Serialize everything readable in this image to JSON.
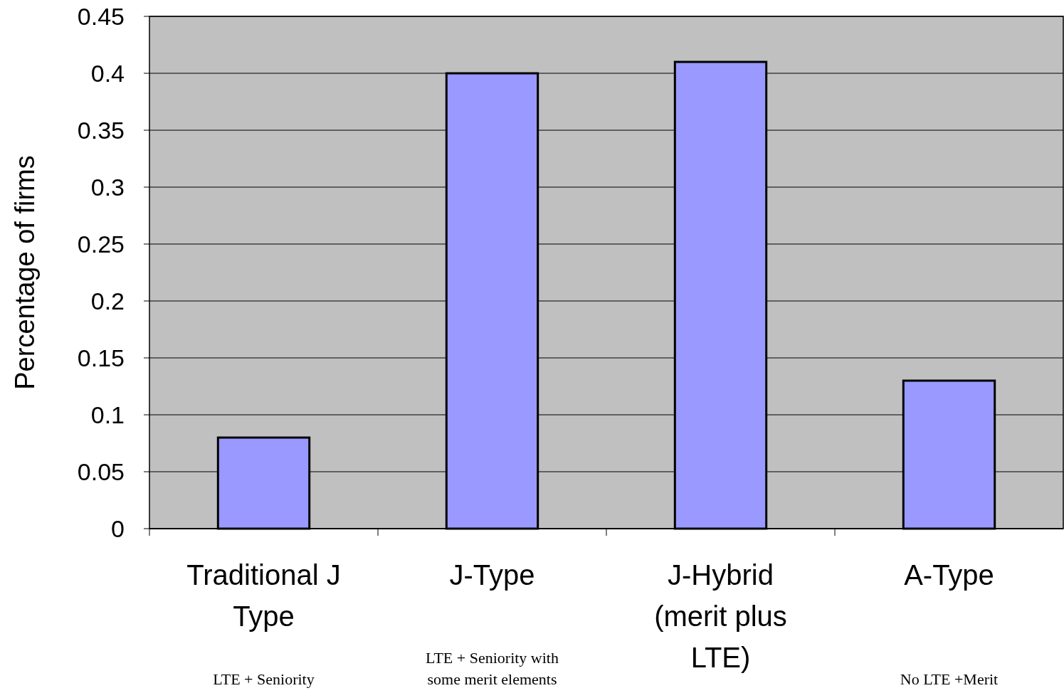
{
  "chart_data": {
    "type": "bar",
    "ylabel": "Percentage of firms",
    "categories": [
      "Traditional J Type",
      "J-Type",
      "J-Hybrid (merit plus LTE)",
      "A-Type"
    ],
    "values": [
      0.08,
      0.4,
      0.41,
      0.13
    ],
    "color": "#9999ff",
    "ylim": [
      0,
      0.45
    ],
    "yticks": [
      0,
      0.05,
      0.1,
      0.15,
      0.2,
      0.25,
      0.3,
      0.35,
      0.4,
      0.45
    ],
    "grid": "y",
    "annotations": [
      "LTE + Seniority",
      "LTE + Seniority with some merit elements",
      "No LTE +Merit"
    ]
  }
}
